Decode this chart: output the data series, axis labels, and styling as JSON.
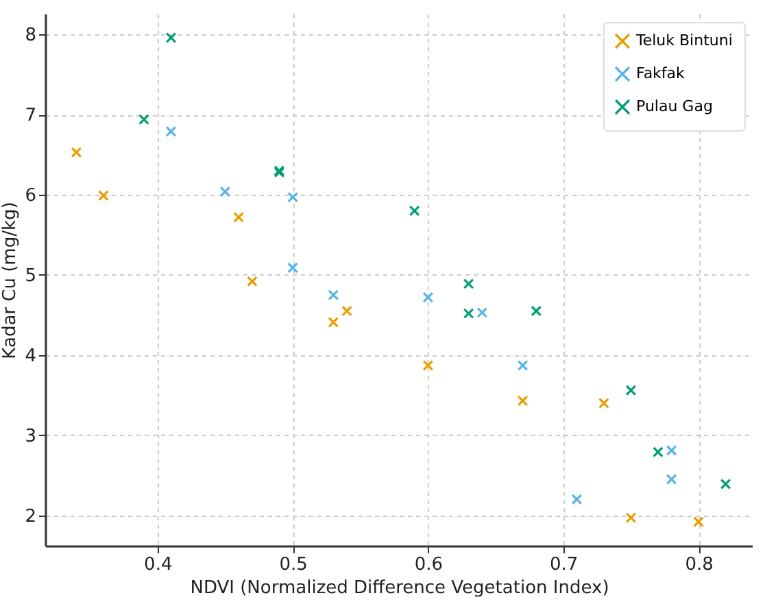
{
  "chart_data": {
    "type": "scatter",
    "xlabel": "NDVI (Normalized Difference Vegetation Index)",
    "ylabel": "Kadar Cu (mg/kg)",
    "xlim": [
      0.317,
      0.84
    ],
    "ylim": [
      1.62,
      8.26
    ],
    "xticks": [
      0.4,
      0.5,
      0.6,
      0.7,
      0.8
    ],
    "yticks": [
      2,
      3,
      4,
      5,
      6,
      7,
      8
    ],
    "grid": true,
    "legend": "top right",
    "marker": "cross",
    "series": [
      {
        "name": "Teluk Bintuni",
        "color": "#e69f00",
        "x": [
          0.34,
          0.36,
          0.46,
          0.47,
          0.53,
          0.54,
          0.6,
          0.67,
          0.73,
          0.75,
          0.8
        ],
        "values": [
          6.53,
          5.99,
          5.72,
          4.92,
          4.41,
          4.55,
          3.87,
          3.43,
          3.4,
          1.97,
          1.92
        ]
      },
      {
        "name": "Fakfak",
        "color": "#56b4e9",
        "x": [
          0.41,
          0.45,
          0.5,
          0.5,
          0.53,
          0.6,
          0.64,
          0.67,
          0.71,
          0.78,
          0.78
        ],
        "values": [
          6.79,
          6.04,
          5.97,
          5.09,
          4.75,
          4.72,
          4.53,
          3.87,
          2.2,
          2.81,
          2.45
        ]
      },
      {
        "name": "Pulau Gag",
        "color": "#009e73",
        "x": [
          0.41,
          0.39,
          0.49,
          0.49,
          0.59,
          0.63,
          0.63,
          0.68,
          0.75,
          0.77,
          0.82
        ],
        "values": [
          7.96,
          6.94,
          6.28,
          6.3,
          5.8,
          4.89,
          4.52,
          4.55,
          3.56,
          2.79,
          2.39
        ]
      }
    ]
  }
}
